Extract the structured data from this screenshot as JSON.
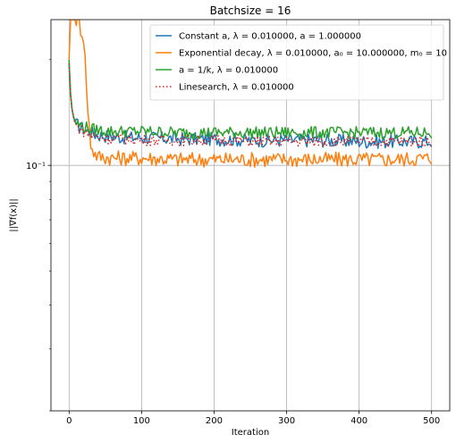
{
  "chart_data": {
    "type": "line",
    "title": "Batchsize = 16",
    "xlabel": "Iteration",
    "ylabel": "||∇f(x)||",
    "xlim": [
      -25,
      525
    ],
    "ylim": [
      0.02,
      0.26
    ],
    "yscale": "log",
    "grid": true,
    "legend_position": "top-right",
    "x_ticks": [
      0,
      100,
      200,
      300,
      400,
      500
    ],
    "x_tick_labels": [
      "0",
      "100",
      "200",
      "300",
      "400",
      "500"
    ],
    "y_ticks": [
      0.1
    ],
    "y_tick_labels": [
      "10⁻¹"
    ],
    "series": [
      {
        "name": "Constant a, λ = 0.010000, a = 1.000000",
        "color": "#1f77b4",
        "dash": "solid",
        "x": [
          0,
          2,
          4,
          6,
          8,
          10,
          15,
          20,
          30,
          40,
          60,
          80,
          100,
          150,
          200,
          250,
          300,
          350,
          400,
          450,
          500
        ],
        "y": [
          0.195,
          0.16,
          0.145,
          0.138,
          0.133,
          0.131,
          0.129,
          0.127,
          0.124,
          0.122,
          0.121,
          0.12,
          0.12,
          0.119,
          0.119,
          0.118,
          0.118,
          0.118,
          0.117,
          0.117,
          0.117
        ]
      },
      {
        "name": "Exponential decay, λ = 0.010000, a₀ = 10.000000, m₀ = 10",
        "color": "#ff7f0e",
        "dash": "solid",
        "x": [
          0,
          2,
          4,
          6,
          8,
          10,
          13,
          16,
          20,
          23,
          26,
          30,
          35,
          40,
          60,
          80,
          100,
          150,
          200,
          250,
          300,
          350,
          400,
          450,
          500
        ],
        "y": [
          0.2,
          0.26,
          0.26,
          0.26,
          0.26,
          0.26,
          0.26,
          0.245,
          0.232,
          0.185,
          0.14,
          0.115,
          0.108,
          0.106,
          0.105,
          0.105,
          0.105,
          0.104,
          0.104,
          0.104,
          0.104,
          0.104,
          0.104,
          0.104,
          0.105
        ]
      },
      {
        "name": "a = 1/k, λ = 0.010000",
        "color": "#2ca02c",
        "dash": "solid",
        "x": [
          0,
          2,
          4,
          6,
          8,
          10,
          15,
          20,
          30,
          40,
          60,
          80,
          100,
          150,
          200,
          250,
          300,
          350,
          400,
          450,
          500
        ],
        "y": [
          0.2,
          0.16,
          0.145,
          0.138,
          0.134,
          0.132,
          0.13,
          0.129,
          0.127,
          0.126,
          0.125,
          0.125,
          0.125,
          0.124,
          0.124,
          0.124,
          0.124,
          0.124,
          0.124,
          0.124,
          0.124
        ]
      },
      {
        "name": "Linesearch, λ = 0.010000",
        "color": "#d62728",
        "dash": "dotted",
        "x": [
          0,
          2,
          4,
          6,
          8,
          10,
          15,
          20,
          30,
          40,
          60,
          80,
          100,
          150,
          200,
          250,
          300,
          350,
          400,
          450,
          500
        ],
        "y": [
          0.195,
          0.158,
          0.144,
          0.137,
          0.132,
          0.13,
          0.127,
          0.125,
          0.122,
          0.12,
          0.119,
          0.119,
          0.118,
          0.118,
          0.118,
          0.117,
          0.117,
          0.117,
          0.117,
          0.117,
          0.117
        ]
      }
    ]
  }
}
